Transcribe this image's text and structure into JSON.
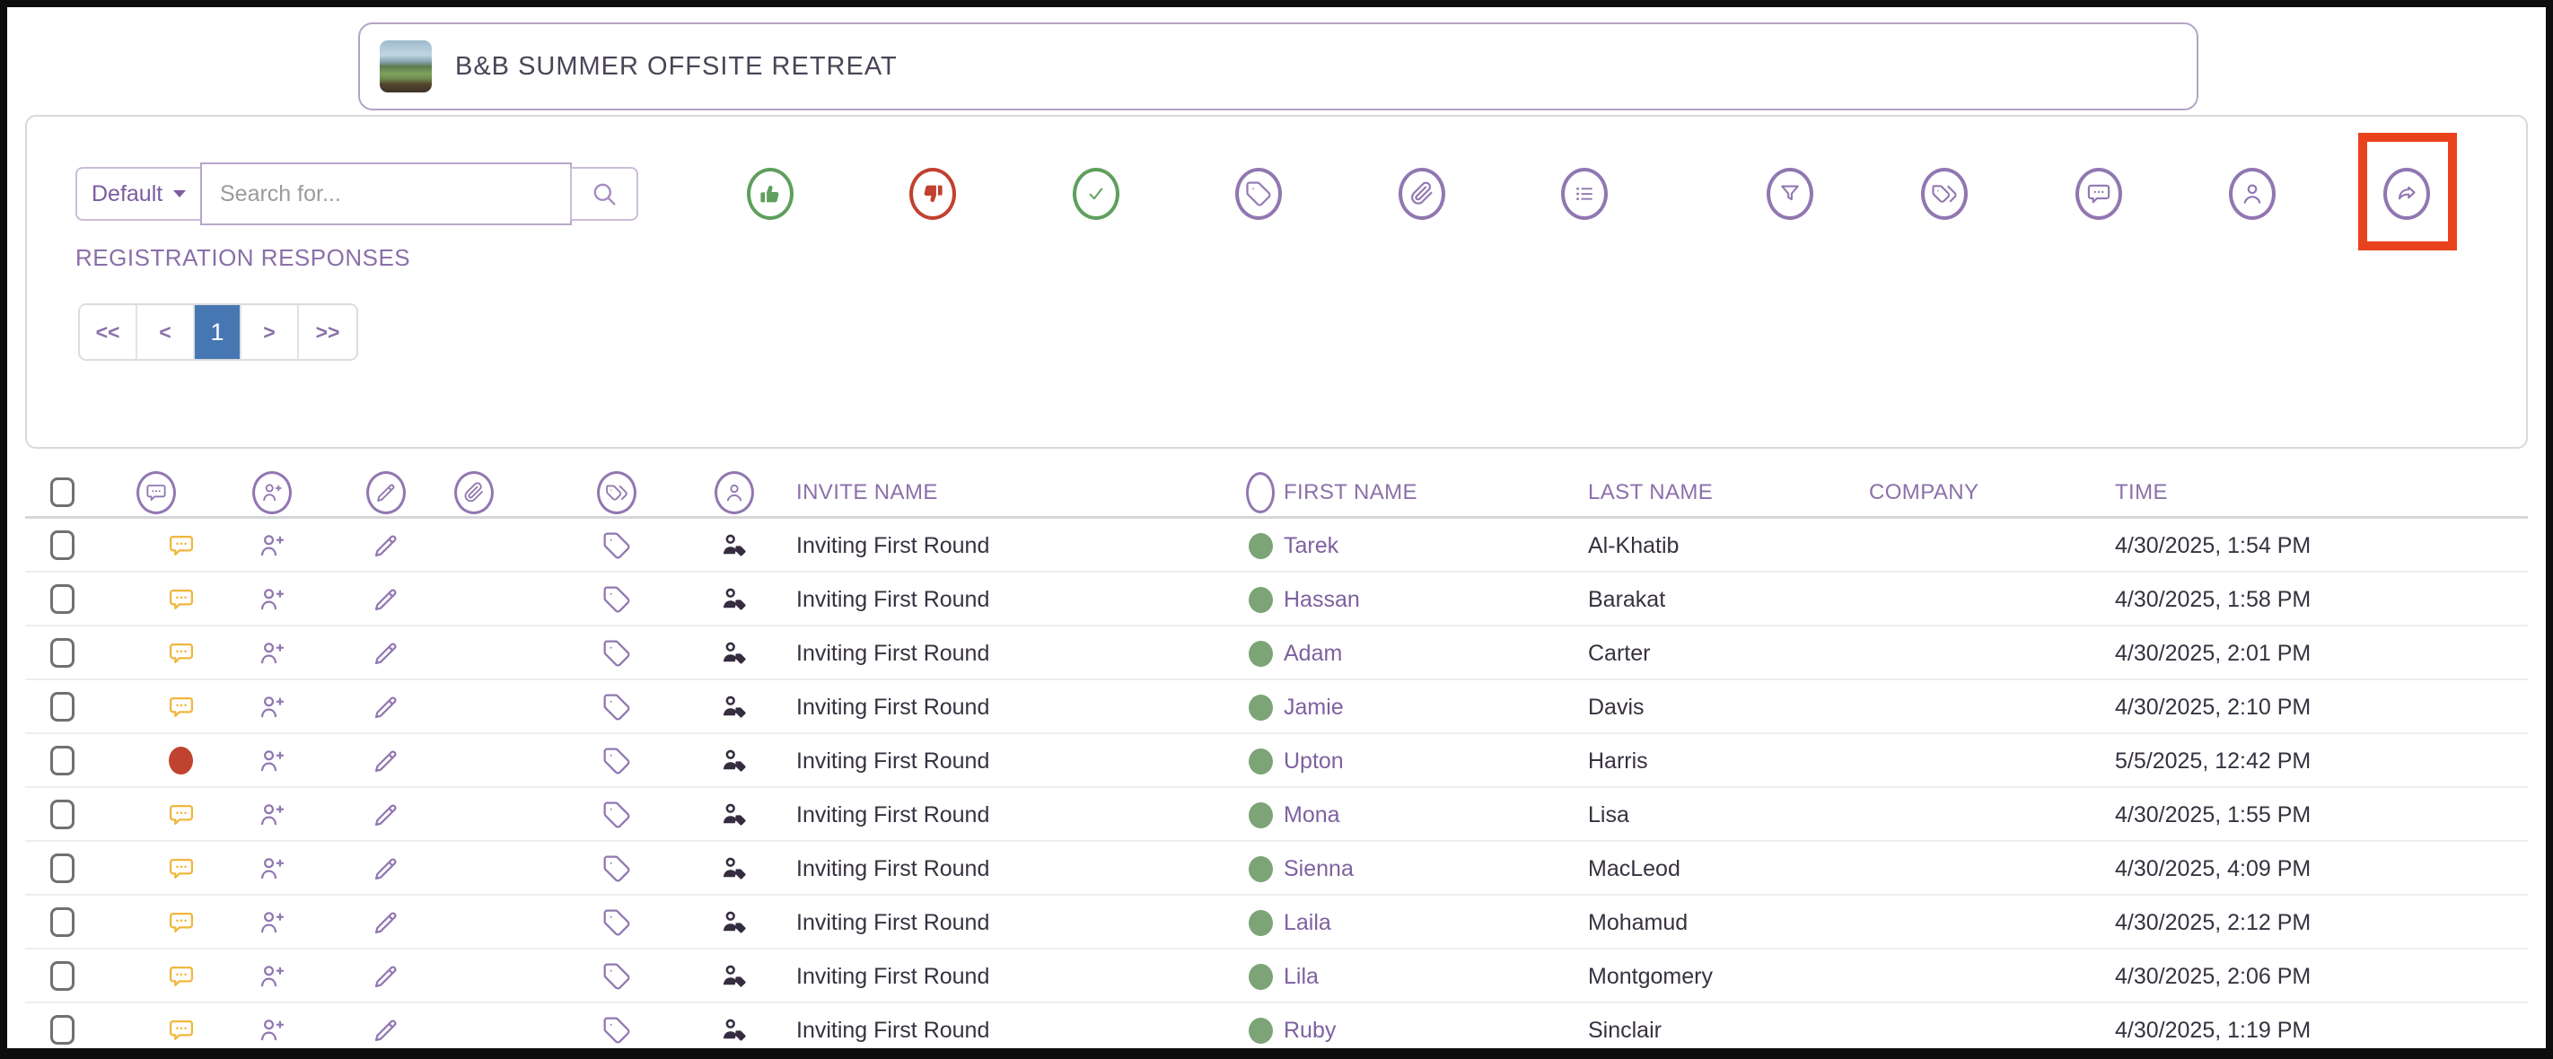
{
  "event": {
    "title": "B&B SUMMER OFFSITE RETREAT",
    "thumbnail": "outdoor-retreat-photo"
  },
  "toolbar": {
    "view_selector": {
      "label": "Default"
    },
    "search": {
      "placeholder": "Search for..."
    },
    "actions": [
      {
        "name": "approve-thumbs-up",
        "color": "#5f9f5d"
      },
      {
        "name": "reject-thumbs-down",
        "color": "#c2402f"
      },
      {
        "name": "confirm-check",
        "color": "#5f9f5d"
      },
      {
        "name": "tag",
        "color": "#9177b1"
      },
      {
        "name": "attachment",
        "color": "#9177b1"
      },
      {
        "name": "list",
        "color": "#9177b1"
      },
      {
        "name": "filter",
        "color": "#9177b1"
      },
      {
        "name": "tags",
        "color": "#9177b1"
      },
      {
        "name": "comments",
        "color": "#9177b1"
      },
      {
        "name": "profile",
        "color": "#9177b1"
      },
      {
        "name": "share",
        "color": "#9177b1",
        "highlighted": true
      }
    ],
    "highlight_color": "#e8421d"
  },
  "section": {
    "title": "REGISTRATION RESPONSES"
  },
  "pagination": {
    "first": "<<",
    "prev": "<",
    "current_page": "1",
    "next": ">",
    "last": ">>",
    "active_color": "#4677b2"
  },
  "table": {
    "header_icons": [
      "comment",
      "add-guest",
      "edit",
      "attachment",
      "tags",
      "profile"
    ],
    "status_column_icon": "circle",
    "columns": [
      "INVITE NAME",
      "FIRST NAME",
      "LAST NAME",
      "COMPANY",
      "TIME"
    ],
    "row_icon_colors": {
      "comment_pending": "#f0b63b",
      "alert": "#c04330",
      "action_purple": "#9177b1",
      "contact_dark": "#352c40",
      "status_green": "#7ca477"
    },
    "rows": [
      {
        "invite_name": "Inviting First Round",
        "note_status": "comment-pending",
        "status": "confirmed",
        "first_name": "Tarek",
        "last_name": "Al-Khatib",
        "company": "",
        "time": "4/30/2025, 1:54 PM"
      },
      {
        "invite_name": "Inviting First Round",
        "note_status": "comment-pending",
        "status": "confirmed",
        "first_name": "Hassan",
        "last_name": "Barakat",
        "company": "",
        "time": "4/30/2025, 1:58 PM"
      },
      {
        "invite_name": "Inviting First Round",
        "note_status": "comment-pending",
        "status": "confirmed",
        "first_name": "Adam",
        "last_name": "Carter",
        "company": "",
        "time": "4/30/2025, 2:01 PM"
      },
      {
        "invite_name": "Inviting First Round",
        "note_status": "comment-pending",
        "status": "confirmed",
        "first_name": "Jamie",
        "last_name": "Davis",
        "company": "",
        "time": "4/30/2025, 2:10 PM"
      },
      {
        "invite_name": "Inviting First Round",
        "note_status": "alert",
        "status": "confirmed",
        "first_name": "Upton",
        "last_name": "Harris",
        "company": "",
        "time": "5/5/2025, 12:42 PM"
      },
      {
        "invite_name": "Inviting First Round",
        "note_status": "comment-pending",
        "status": "confirmed",
        "first_name": "Mona",
        "last_name": "Lisa",
        "company": "",
        "time": "4/30/2025, 1:55 PM"
      },
      {
        "invite_name": "Inviting First Round",
        "note_status": "comment-pending",
        "status": "confirmed",
        "first_name": "Sienna",
        "last_name": "MacLeod",
        "company": "",
        "time": "4/30/2025, 4:09 PM"
      },
      {
        "invite_name": "Inviting First Round",
        "note_status": "comment-pending",
        "status": "confirmed",
        "first_name": "Laila",
        "last_name": "Mohamud",
        "company": "",
        "time": "4/30/2025, 2:12 PM"
      },
      {
        "invite_name": "Inviting First Round",
        "note_status": "comment-pending",
        "status": "confirmed",
        "first_name": "Lila",
        "last_name": "Montgomery",
        "company": "",
        "time": "4/30/2025, 2:06 PM"
      },
      {
        "invite_name": "Inviting First Round",
        "note_status": "comment-pending",
        "status": "confirmed",
        "first_name": "Ruby",
        "last_name": "Sinclair",
        "company": "",
        "time": "4/30/2025, 1:19 PM"
      }
    ]
  }
}
